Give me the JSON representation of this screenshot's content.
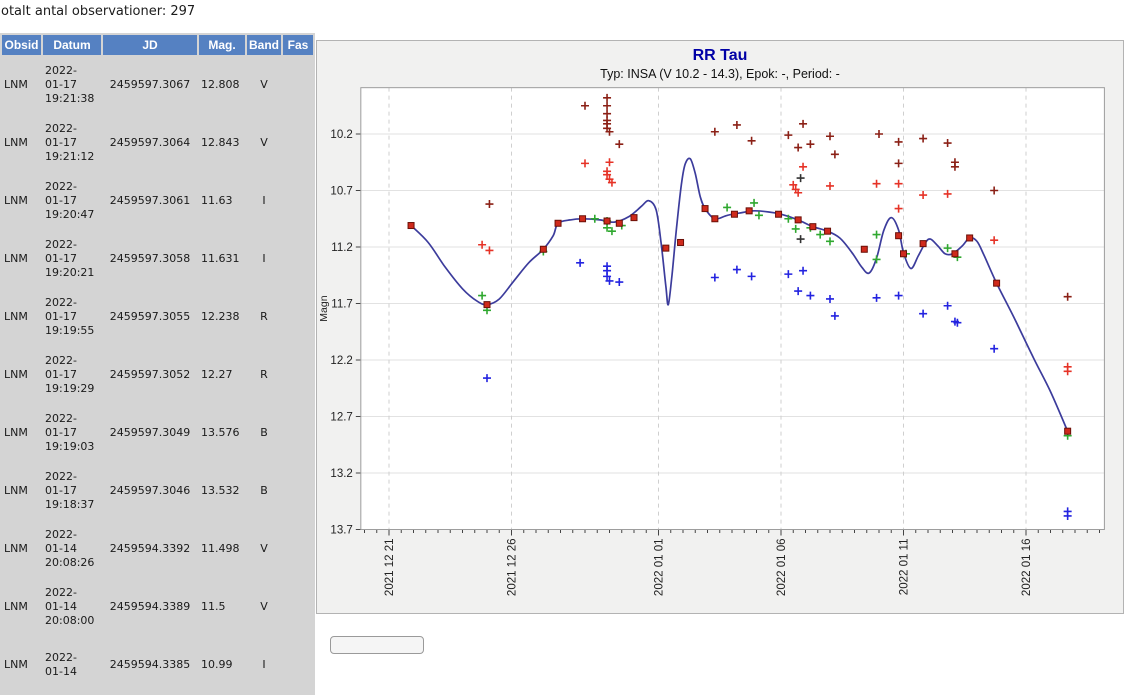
{
  "page": {
    "obs_count_label": "otalt antal observationer: 297"
  },
  "table": {
    "columns": [
      "Obsid",
      "Datum",
      "JD",
      "Mag.",
      "Band",
      "Fas"
    ],
    "rows": [
      {
        "obsid": "LNM",
        "datum": "2022-\n01-17\n19:21:38",
        "jd": "2459597.3067",
        "mag": "12.808",
        "band": "V",
        "fas": ""
      },
      {
        "obsid": "LNM",
        "datum": "2022-\n01-17\n19:21:12",
        "jd": "2459597.3064",
        "mag": "12.843",
        "band": "V",
        "fas": ""
      },
      {
        "obsid": "LNM",
        "datum": "2022-\n01-17\n19:20:47",
        "jd": "2459597.3061",
        "mag": "11.63",
        "band": "I",
        "fas": ""
      },
      {
        "obsid": "LNM",
        "datum": "2022-\n01-17\n19:20:21",
        "jd": "2459597.3058",
        "mag": "11.631",
        "band": "I",
        "fas": ""
      },
      {
        "obsid": "LNM",
        "datum": "2022-\n01-17\n19:19:55",
        "jd": "2459597.3055",
        "mag": "12.238",
        "band": "R",
        "fas": ""
      },
      {
        "obsid": "LNM",
        "datum": "2022-\n01-17\n19:19:29",
        "jd": "2459597.3052",
        "mag": "12.27",
        "band": "R",
        "fas": ""
      },
      {
        "obsid": "LNM",
        "datum": "2022-\n01-17\n19:19:03",
        "jd": "2459597.3049",
        "mag": "13.576",
        "band": "B",
        "fas": ""
      },
      {
        "obsid": "LNM",
        "datum": "2022-\n01-17\n19:18:37",
        "jd": "2459597.3046",
        "mag": "13.532",
        "band": "B",
        "fas": ""
      },
      {
        "obsid": "LNM",
        "datum": "2022-\n01-14\n20:08:26",
        "jd": "2459594.3392",
        "mag": "11.498",
        "band": "V",
        "fas": ""
      },
      {
        "obsid": "LNM",
        "datum": "2022-\n01-14\n20:08:00",
        "jd": "2459594.3389",
        "mag": "11.5",
        "band": "V",
        "fas": ""
      },
      {
        "obsid": "LNM",
        "datum": "2022-\n01-14",
        "jd": "2459594.3385",
        "mag": "10.99",
        "band": "I",
        "fas": ""
      }
    ]
  },
  "chart": {
    "title": "RR Tau",
    "subtitle": "Typ: INSA (V 10.2 - 14.3), Epok: -, Period: -"
  },
  "chart_data": {
    "type": "scatter",
    "title": "RR Tau",
    "subtitle": "Typ: INSA (V 10.2 - 14.3), Epok: -, Period: -",
    "ylabel": "Magn",
    "y_inverted": true,
    "y_ticks": [
      10.2,
      10.7,
      11.2,
      11.7,
      12.2,
      12.7,
      13.2,
      13.7
    ],
    "y_range": [
      9.79,
      13.7
    ],
    "x_unit": "days since 2021-12-21",
    "x_tick_labels": [
      "2021 12 21",
      "2021 12 26",
      "2022 01 01",
      "2022 01 06",
      "2022 01 11",
      "2022 01 16"
    ],
    "x_tick_days": [
      0,
      5,
      11,
      16,
      21,
      26
    ],
    "x_range_days": [
      -1.15,
      29.2
    ],
    "grid": true,
    "legend": "none",
    "series": [
      {
        "name": "I-band",
        "color": "#8b2016",
        "marker": "plus",
        "points": [
          [
            4.1,
            10.82
          ],
          [
            8.0,
            9.95
          ],
          [
            8.9,
            9.88
          ],
          [
            8.9,
            9.95
          ],
          [
            8.9,
            10.02
          ],
          [
            8.9,
            10.08
          ],
          [
            8.9,
            10.11
          ],
          [
            8.9,
            10.15
          ],
          [
            9.0,
            10.18
          ],
          [
            9.4,
            10.29
          ],
          [
            13.3,
            10.18
          ],
          [
            14.2,
            10.12
          ],
          [
            14.8,
            10.26
          ],
          [
            16.3,
            10.21
          ],
          [
            16.7,
            10.32
          ],
          [
            16.9,
            10.11
          ],
          [
            17.2,
            10.29
          ],
          [
            18.0,
            10.22
          ],
          [
            18.2,
            10.38
          ],
          [
            20.0,
            10.2
          ],
          [
            20.8,
            10.27
          ],
          [
            20.8,
            10.46
          ],
          [
            21.8,
            10.24
          ],
          [
            22.8,
            10.28
          ],
          [
            23.1,
            10.45
          ],
          [
            23.1,
            10.49
          ],
          [
            24.7,
            10.7
          ],
          [
            27.7,
            11.64
          ]
        ]
      },
      {
        "name": "R-band",
        "color": "#e63327",
        "marker": "plus",
        "points": [
          [
            3.8,
            11.18
          ],
          [
            4.1,
            11.23
          ],
          [
            8.0,
            10.46
          ],
          [
            8.9,
            10.53
          ],
          [
            8.9,
            10.56
          ],
          [
            9.0,
            10.45
          ],
          [
            9.0,
            10.6
          ],
          [
            9.1,
            10.63
          ],
          [
            16.5,
            10.65
          ],
          [
            16.6,
            10.69
          ],
          [
            16.7,
            10.72
          ],
          [
            16.9,
            10.49
          ],
          [
            18.0,
            10.66
          ],
          [
            19.9,
            10.64
          ],
          [
            20.8,
            10.64
          ],
          [
            20.8,
            10.86
          ],
          [
            21.8,
            10.74
          ],
          [
            22.8,
            10.73
          ],
          [
            24.7,
            11.14
          ],
          [
            27.7,
            12.26
          ],
          [
            27.7,
            12.3
          ]
        ]
      },
      {
        "name": "V-band",
        "color": "#2fa82f",
        "marker": "plus",
        "points": [
          [
            3.8,
            11.63
          ],
          [
            4.0,
            11.76
          ],
          [
            6.3,
            11.24
          ],
          [
            8.4,
            10.95
          ],
          [
            8.9,
            10.97
          ],
          [
            8.9,
            11.03
          ],
          [
            9.1,
            11.06
          ],
          [
            9.5,
            11.01
          ],
          [
            13.8,
            10.85
          ],
          [
            14.9,
            10.81
          ],
          [
            15.1,
            10.92
          ],
          [
            16.3,
            10.95
          ],
          [
            16.6,
            11.04
          ],
          [
            17.2,
            11.03
          ],
          [
            17.6,
            11.09
          ],
          [
            18.0,
            11.15
          ],
          [
            19.9,
            11.09
          ],
          [
            19.9,
            11.31
          ],
          [
            21.1,
            11.26
          ],
          [
            22.8,
            11.21
          ],
          [
            23.2,
            11.29
          ],
          [
            27.7,
            12.87
          ]
        ]
      },
      {
        "name": "B-band",
        "color": "#2323e0",
        "marker": "plus",
        "points": [
          [
            4.0,
            12.36
          ],
          [
            7.8,
            11.34
          ],
          [
            8.9,
            11.37
          ],
          [
            8.9,
            11.41
          ],
          [
            8.9,
            11.46
          ],
          [
            9.0,
            11.5
          ],
          [
            9.4,
            11.51
          ],
          [
            13.3,
            11.47
          ],
          [
            14.2,
            11.4
          ],
          [
            14.8,
            11.46
          ],
          [
            16.3,
            11.44
          ],
          [
            16.7,
            11.59
          ],
          [
            16.9,
            11.41
          ],
          [
            17.2,
            11.63
          ],
          [
            18.0,
            11.66
          ],
          [
            18.2,
            11.81
          ],
          [
            19.9,
            11.65
          ],
          [
            20.8,
            11.63
          ],
          [
            21.8,
            11.79
          ],
          [
            22.8,
            11.72
          ],
          [
            23.1,
            11.86
          ],
          [
            23.2,
            11.87
          ],
          [
            24.7,
            12.1
          ],
          [
            27.7,
            13.54
          ],
          [
            27.7,
            13.58
          ]
        ]
      },
      {
        "name": "other",
        "color": "#333333",
        "marker": "plus",
        "points": [
          [
            16.8,
            10.59
          ],
          [
            16.8,
            11.13
          ]
        ]
      },
      {
        "name": "mean-points",
        "color": "#cf2a1c",
        "marker": "square",
        "points": [
          [
            0.9,
            11.01
          ],
          [
            4.0,
            11.71
          ],
          [
            6.3,
            11.22
          ],
          [
            6.9,
            10.99
          ],
          [
            7.9,
            10.95
          ],
          [
            8.9,
            10.97
          ],
          [
            9.4,
            10.99
          ],
          [
            10.0,
            10.94
          ],
          [
            11.3,
            11.21
          ],
          [
            11.9,
            11.16
          ],
          [
            12.9,
            10.86
          ],
          [
            13.3,
            10.95
          ],
          [
            14.1,
            10.91
          ],
          [
            14.7,
            10.88
          ],
          [
            15.9,
            10.91
          ],
          [
            16.7,
            10.96
          ],
          [
            17.3,
            11.02
          ],
          [
            17.9,
            11.06
          ],
          [
            19.4,
            11.22
          ],
          [
            20.8,
            11.1
          ],
          [
            21.0,
            11.26
          ],
          [
            21.8,
            11.17
          ],
          [
            23.1,
            11.26
          ],
          [
            23.7,
            11.12
          ],
          [
            24.8,
            11.52
          ],
          [
            27.7,
            12.83
          ]
        ]
      }
    ],
    "curve": {
      "name": "smoothed-light-curve",
      "color": "#3c3c9c",
      "points": [
        [
          0.9,
          11.01
        ],
        [
          1.6,
          11.16
        ],
        [
          2.3,
          11.38
        ],
        [
          3.0,
          11.57
        ],
        [
          3.6,
          11.68
        ],
        [
          4.0,
          11.71
        ],
        [
          4.5,
          11.66
        ],
        [
          5.1,
          11.5
        ],
        [
          5.7,
          11.34
        ],
        [
          6.3,
          11.22
        ],
        [
          6.7,
          11.1
        ],
        [
          6.9,
          10.99
        ],
        [
          7.4,
          10.96
        ],
        [
          7.9,
          10.95
        ],
        [
          8.6,
          10.96
        ],
        [
          9.2,
          10.98
        ],
        [
          9.8,
          10.93
        ],
        [
          10.3,
          10.84
        ],
        [
          10.6,
          10.79
        ],
        [
          10.9,
          10.87
        ],
        [
          11.1,
          11.15
        ],
        [
          11.3,
          11.55
        ],
        [
          11.4,
          11.71
        ],
        [
          11.55,
          11.45
        ],
        [
          11.75,
          11.0
        ],
        [
          11.95,
          10.62
        ],
        [
          12.1,
          10.46
        ],
        [
          12.3,
          10.42
        ],
        [
          12.5,
          10.55
        ],
        [
          12.7,
          10.75
        ],
        [
          12.9,
          10.86
        ],
        [
          13.3,
          10.95
        ],
        [
          13.8,
          10.92
        ],
        [
          14.3,
          10.9
        ],
        [
          14.9,
          10.88
        ],
        [
          15.5,
          10.89
        ],
        [
          16.0,
          10.91
        ],
        [
          16.7,
          10.96
        ],
        [
          17.3,
          11.02
        ],
        [
          17.9,
          11.06
        ],
        [
          18.4,
          11.12
        ],
        [
          18.9,
          11.25
        ],
        [
          19.3,
          11.38
        ],
        [
          19.6,
          11.43
        ],
        [
          19.9,
          11.3
        ],
        [
          20.2,
          11.05
        ],
        [
          20.5,
          10.94
        ],
        [
          20.8,
          11.05
        ],
        [
          21.0,
          11.25
        ],
        [
          21.3,
          11.39
        ],
        [
          21.6,
          11.28
        ],
        [
          21.9,
          11.16
        ],
        [
          22.1,
          11.13
        ],
        [
          22.4,
          11.19
        ],
        [
          22.7,
          11.26
        ],
        [
          23.0,
          11.26
        ],
        [
          23.4,
          11.19
        ],
        [
          23.7,
          11.12
        ],
        [
          24.0,
          11.15
        ],
        [
          24.3,
          11.28
        ],
        [
          24.8,
          11.52
        ],
        [
          25.5,
          11.82
        ],
        [
          26.3,
          12.18
        ],
        [
          27.0,
          12.48
        ],
        [
          27.7,
          12.83
        ]
      ]
    }
  }
}
